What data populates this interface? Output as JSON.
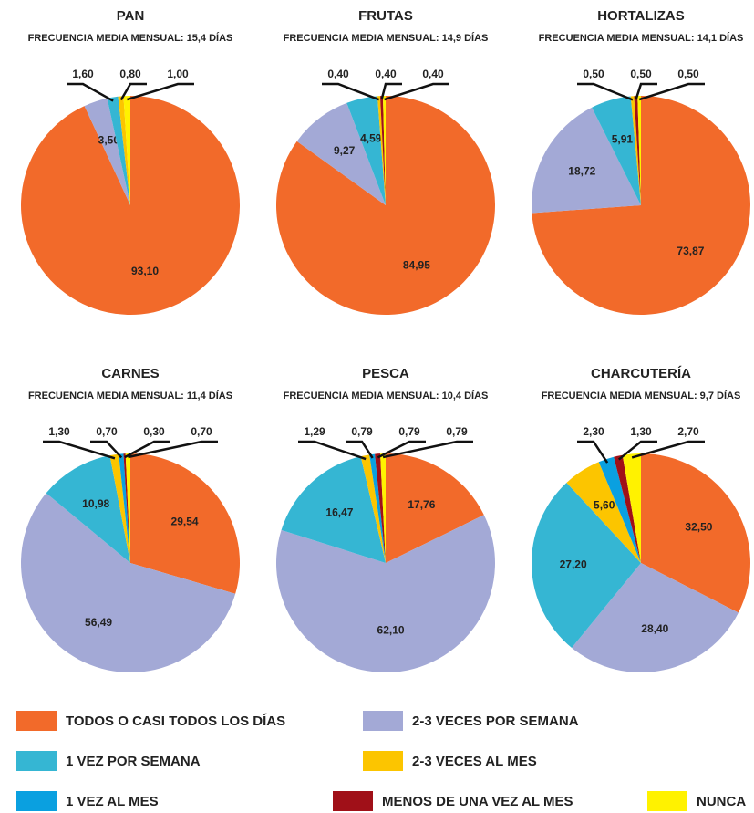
{
  "legend": {
    "categories": [
      "TODOS O CASI TODOS LOS DÍAS",
      "2-3 VECES POR SEMANA",
      "1 VEZ POR SEMANA",
      "2-3 VECES AL MES",
      "1 VEZ AL MES",
      "MENOS DE UNA VEZ AL MES",
      "NUNCA"
    ],
    "colors": [
      "#f26a2a",
      "#a3a9d6",
      "#35b6d3",
      "#fcc500",
      "#0aa0e0",
      "#a01018",
      "#fff200"
    ]
  },
  "chart_data": [
    {
      "type": "pie",
      "title": "PAN",
      "subtitle": "FRECUENCIA MEDIA MENSUAL: 15,4 DÍAS",
      "values": [
        93.1,
        3.5,
        1.6,
        0.8,
        null,
        null,
        1.0
      ],
      "value_labels": [
        "93,10",
        "3,50",
        "1,60",
        "0,80",
        null,
        null,
        "1,00"
      ]
    },
    {
      "type": "pie",
      "title": "FRUTAS",
      "subtitle": "FRECUENCIA MEDIA MENSUAL: 14,9 DÍAS",
      "values": [
        84.95,
        9.27,
        4.59,
        0.4,
        null,
        0.4,
        0.4
      ],
      "value_labels": [
        "84,95",
        "9,27",
        "4,59",
        "0,40",
        null,
        "0,40",
        "0,40"
      ]
    },
    {
      "type": "pie",
      "title": "HORTALIZAS",
      "subtitle": "FRECUENCIA MEDIA MENSUAL: 14,1 DÍAS",
      "values": [
        73.87,
        18.72,
        5.91,
        0.5,
        null,
        0.5,
        0.5
      ],
      "value_labels": [
        "73,87",
        "18,72",
        "5,91",
        "0,50",
        null,
        "0,50",
        "0,50"
      ]
    },
    {
      "type": "pie",
      "title": "CARNES",
      "subtitle": "FRECUENCIA MEDIA MENSUAL: 11,4 DÍAS",
      "values": [
        29.54,
        56.49,
        10.98,
        1.3,
        0.7,
        0.3,
        0.7
      ],
      "value_labels": [
        "29,54",
        "56,49",
        "10,98",
        "1,30",
        "0,70",
        "0,30",
        "0,70"
      ]
    },
    {
      "type": "pie",
      "title": "PESCA",
      "subtitle": "FRECUENCIA MEDIA MENSUAL: 10,4 DÍAS",
      "values": [
        17.76,
        62.1,
        16.47,
        1.29,
        0.79,
        0.79,
        0.79
      ],
      "value_labels": [
        "17,76",
        "62,10",
        "16,47",
        "1,29",
        "0,79",
        "0,79",
        "0,79"
      ]
    },
    {
      "type": "pie",
      "title": "CHARCUTERÍA",
      "subtitle": "FRECUENCIA MEDIA MENSUAL: 9,7 DÍAS",
      "values": [
        32.5,
        28.4,
        27.2,
        5.6,
        2.3,
        1.3,
        2.7
      ],
      "value_labels": [
        "32,50",
        "28,40",
        "27,20",
        "5,60",
        "2,30",
        "1,30",
        "2,70"
      ]
    }
  ]
}
